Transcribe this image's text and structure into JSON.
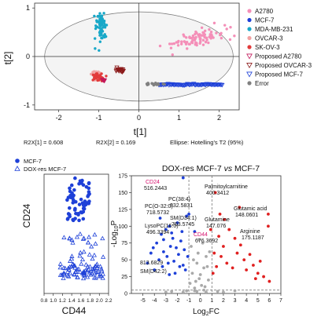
{
  "chart_data": [
    {
      "type": "scatter",
      "title": "",
      "xlabel": "t[1]",
      "ylabel": "t[2]",
      "xlim": [
        -2.6,
        2.5
      ],
      "ylim": [
        -1.1,
        1.1
      ],
      "x_ticks": [
        "-2",
        "-1",
        "0",
        "1",
        "2"
      ],
      "y_ticks": [
        "-1",
        "0",
        "1"
      ],
      "ellipse": {
        "cx": 0,
        "cy": 0,
        "rx": 2.35,
        "ry": 0.92
      },
      "legend": [
        {
          "name": "A2780",
          "marker": "circle",
          "color": "#f48fb8"
        },
        {
          "name": "MCF-7",
          "marker": "circle",
          "color": "#1e40d8"
        },
        {
          "name": "MDA-MB-231",
          "marker": "circle",
          "color": "#19a8c8"
        },
        {
          "name": "OVCAR-3",
          "marker": "circle",
          "color": "#f2a1a1"
        },
        {
          "name": "SK-OV-3",
          "marker": "circle",
          "color": "#e23b3b"
        },
        {
          "name": "Proposed A2780",
          "marker": "triangle-down",
          "color": "#c2185b"
        },
        {
          "name": "Proposed OVCAR-3",
          "marker": "triangle-down",
          "color": "#8b1a1a"
        },
        {
          "name": "Proposed MCF-7",
          "marker": "triangle-down",
          "color": "#1e40d8"
        },
        {
          "name": "Error",
          "marker": "circle",
          "color": "#808080"
        }
      ],
      "series": [
        {
          "name": "A2780",
          "center": [
            1.5,
            0.38
          ],
          "spread": [
            0.7,
            0.17
          ],
          "count": 90
        },
        {
          "name": "MDA-MB-231",
          "center": [
            -0.95,
            0.62
          ],
          "spread": [
            0.15,
            0.32
          ],
          "count": 70
        },
        {
          "name": "OVCAR-3",
          "center": [
            -1.05,
            -0.38
          ],
          "spread": [
            0.12,
            0.07
          ],
          "count": 30
        },
        {
          "name": "SK-OV-3",
          "center": [
            -1.02,
            -0.42
          ],
          "spread": [
            0.15,
            0.08
          ],
          "count": 35
        },
        {
          "name": "Proposed A2780",
          "center": [
            -0.9,
            -0.5
          ],
          "spread": [
            0.05,
            0.03
          ],
          "count": 6
        },
        {
          "name": "Proposed OVCAR-3",
          "center": [
            -0.48,
            -0.28
          ],
          "spread": [
            0.12,
            0.05
          ],
          "count": 22
        },
        {
          "name": "Proposed MCF-7",
          "center": [
            1.1,
            -0.58
          ],
          "spread": [
            0.65,
            0.015
          ],
          "count": 70
        },
        {
          "name": "Error",
          "center": [
            0.35,
            -0.57
          ],
          "spread": [
            0.25,
            0.02
          ],
          "count": 22
        }
      ],
      "footer": {
        "r2x1": "R2X[1] = 0.608",
        "r2x2": "R2X[2] = 0.169",
        "ellipse_note": "Ellipse: Hotelling's T2 (95%)"
      }
    },
    {
      "type": "scatter",
      "title": "",
      "xlabel": "CD44",
      "ylabel": "CD24",
      "xlim": [
        0.8,
        2.2
      ],
      "ylim": [
        0,
        1.6
      ],
      "x_ticks": [
        "0.8",
        "1.0",
        "1.2",
        "1.4",
        "1.6",
        "1.8",
        "2.0",
        "2.2"
      ],
      "legend": [
        {
          "name": "MCF-7",
          "marker": "circle-filled",
          "color": "#1e40d8"
        },
        {
          "name": "DOX-res MCF-7",
          "marker": "triangle-open",
          "color": "#1e40d8"
        }
      ],
      "series": [
        {
          "name": "MCF-7",
          "x_range": [
            1.3,
            1.8
          ],
          "y_range": [
            0.95,
            1.55
          ],
          "count": 60
        },
        {
          "name": "DOX-res MCF-7",
          "x_range": [
            1.15,
            2.1
          ],
          "y_range": [
            0.15,
            0.8
          ],
          "count": 100
        }
      ]
    },
    {
      "type": "scatter",
      "title_main": "DOX-res MCF-7",
      "title_vs": "vs",
      "title_end": "MCF-7",
      "xlabel": "Log2FC",
      "ylabel": "-Log10P",
      "xlim": [
        -6,
        7
      ],
      "ylim": [
        0,
        175
      ],
      "x_ticks": [
        -5,
        -4,
        -3,
        -2,
        -1,
        0,
        1,
        2,
        3,
        4,
        5,
        6,
        7
      ],
      "y_ticks": [
        0,
        25,
        50,
        75,
        100,
        125,
        150,
        175
      ],
      "threshold_y": 5,
      "threshold_x": [
        -1,
        1
      ],
      "annotations": [
        {
          "name": "CD24",
          "mz": "516.2443",
          "x": -1.5,
          "y": 172,
          "highlight": true
        },
        {
          "name": "PC(O-32:0)",
          "mz": "718.5732",
          "x": -3.5,
          "y": 112
        },
        {
          "name": "PC(38:4)",
          "mz": "832.5831",
          "x": -1.0,
          "y": 118
        },
        {
          "name": "SM(D34:1)",
          "mz": "703.5745",
          "x": -0.4,
          "y": 92
        },
        {
          "name": "LysoPC(16:0)",
          "mz": "496.3394",
          "x": -3.2,
          "y": 80
        },
        {
          "name": "Palmitoylcarnitine",
          "mz": "400.3412",
          "x": 1.3,
          "y": 150
        },
        {
          "name": "Glutamine",
          "mz": "147.076",
          "x": 1.6,
          "y": 118
        },
        {
          "name": "Glutamic acid",
          "mz": "148.0601",
          "x": 6.1,
          "y": 118
        },
        {
          "name": "Arginine",
          "mz": "175.1187",
          "x": 6.1,
          "y": 100
        },
        {
          "name": "CD44",
          "mz": "676.3692",
          "x": 0.9,
          "y": 95,
          "highlight": true
        },
        {
          "name": "813.6829",
          "mz": "",
          "x": -2.9,
          "y": 45
        },
        {
          "name": "SM(D42:2)",
          "mz": "",
          "x": -2.8,
          "y": 28
        }
      ],
      "series": [
        {
          "name": "down",
          "color": "#1e40d8",
          "points": [
            [
              -4.6,
              45
            ],
            [
              -4.3,
              60
            ],
            [
              -4.0,
              35
            ],
            [
              -3.8,
              75
            ],
            [
              -3.6,
              50
            ],
            [
              -3.4,
              88
            ],
            [
              -3.2,
              62
            ],
            [
              -3.0,
              95
            ],
            [
              -2.9,
              55
            ],
            [
              -2.7,
              100
            ],
            [
              -2.6,
              70
            ],
            [
              -2.4,
              82
            ],
            [
              -2.3,
              48
            ],
            [
              -2.1,
              68
            ],
            [
              -2.0,
              105
            ],
            [
              -1.9,
              58
            ],
            [
              -1.7,
              78
            ],
            [
              -1.6,
              92
            ],
            [
              -1.5,
              42
            ],
            [
              -1.4,
              65
            ],
            [
              -1.3,
              35
            ],
            [
              -1.2,
              115
            ],
            [
              -1.1,
              55
            ],
            [
              -1.5,
              172
            ],
            [
              -3.5,
              112
            ],
            [
              -1.0,
              118
            ],
            [
              -0.5,
              92
            ],
            [
              -3.2,
              80
            ],
            [
              -2.8,
              45
            ],
            [
              -2.7,
              28
            ],
            [
              -2.2,
              30
            ],
            [
              -1.8,
              40
            ],
            [
              -4.1,
              68
            ],
            [
              -3.3,
              40
            ],
            [
              -2.5,
              90
            ]
          ]
        },
        {
          "name": "up",
          "color": "#e02020",
          "points": [
            [
              1.2,
              60
            ],
            [
              1.4,
              40
            ],
            [
              1.6,
              85
            ],
            [
              1.8,
              55
            ],
            [
              2.0,
              70
            ],
            [
              2.3,
              45
            ],
            [
              2.5,
              95
            ],
            [
              2.8,
              38
            ],
            [
              3.0,
              82
            ],
            [
              3.2,
              60
            ],
            [
              3.5,
              72
            ],
            [
              3.8,
              50
            ],
            [
              4.0,
              35
            ],
            [
              4.3,
              58
            ],
            [
              4.6,
              42
            ],
            [
              5.0,
              30
            ],
            [
              5.2,
              48
            ],
            [
              5.5,
              25
            ],
            [
              6.0,
              18
            ],
            [
              1.3,
              150
            ],
            [
              1.7,
              118
            ],
            [
              5.9,
              118
            ],
            [
              5.9,
              100
            ],
            [
              0.9,
              95
            ],
            [
              2.1,
              110
            ],
            [
              3.4,
              128
            ],
            [
              4.8,
              22
            ],
            [
              1.1,
              30
            ]
          ]
        },
        {
          "name": "ns",
          "color": "#a9a9a9",
          "points": [
            [
              -0.9,
              15
            ],
            [
              -0.7,
              30
            ],
            [
              -0.5,
              8
            ],
            [
              -0.3,
              45
            ],
            [
              -0.1,
              22
            ],
            [
              0.1,
              12
            ],
            [
              0.3,
              38
            ],
            [
              0.5,
              55
            ],
            [
              0.7,
              20
            ],
            [
              -0.2,
              60
            ],
            [
              0.2,
              75
            ],
            [
              -0.6,
              50
            ],
            [
              0.6,
              40
            ],
            [
              0.0,
              28
            ],
            [
              -0.4,
              18
            ],
            [
              0.4,
              10
            ],
            [
              0.8,
              62
            ],
            [
              -0.8,
              70
            ],
            [
              -0.1,
              80
            ],
            [
              0.3,
              5
            ],
            [
              -0.3,
              3
            ],
            [
              0.5,
              2
            ],
            [
              -0.5,
              4
            ],
            [
              -2.5,
              3
            ],
            [
              -1.5,
              2
            ],
            [
              2.0,
              2
            ],
            [
              3.0,
              4
            ],
            [
              -3.0,
              2
            ],
            [
              1.5,
              3
            ],
            [
              -1.2,
              4
            ]
          ]
        }
      ]
    }
  ]
}
